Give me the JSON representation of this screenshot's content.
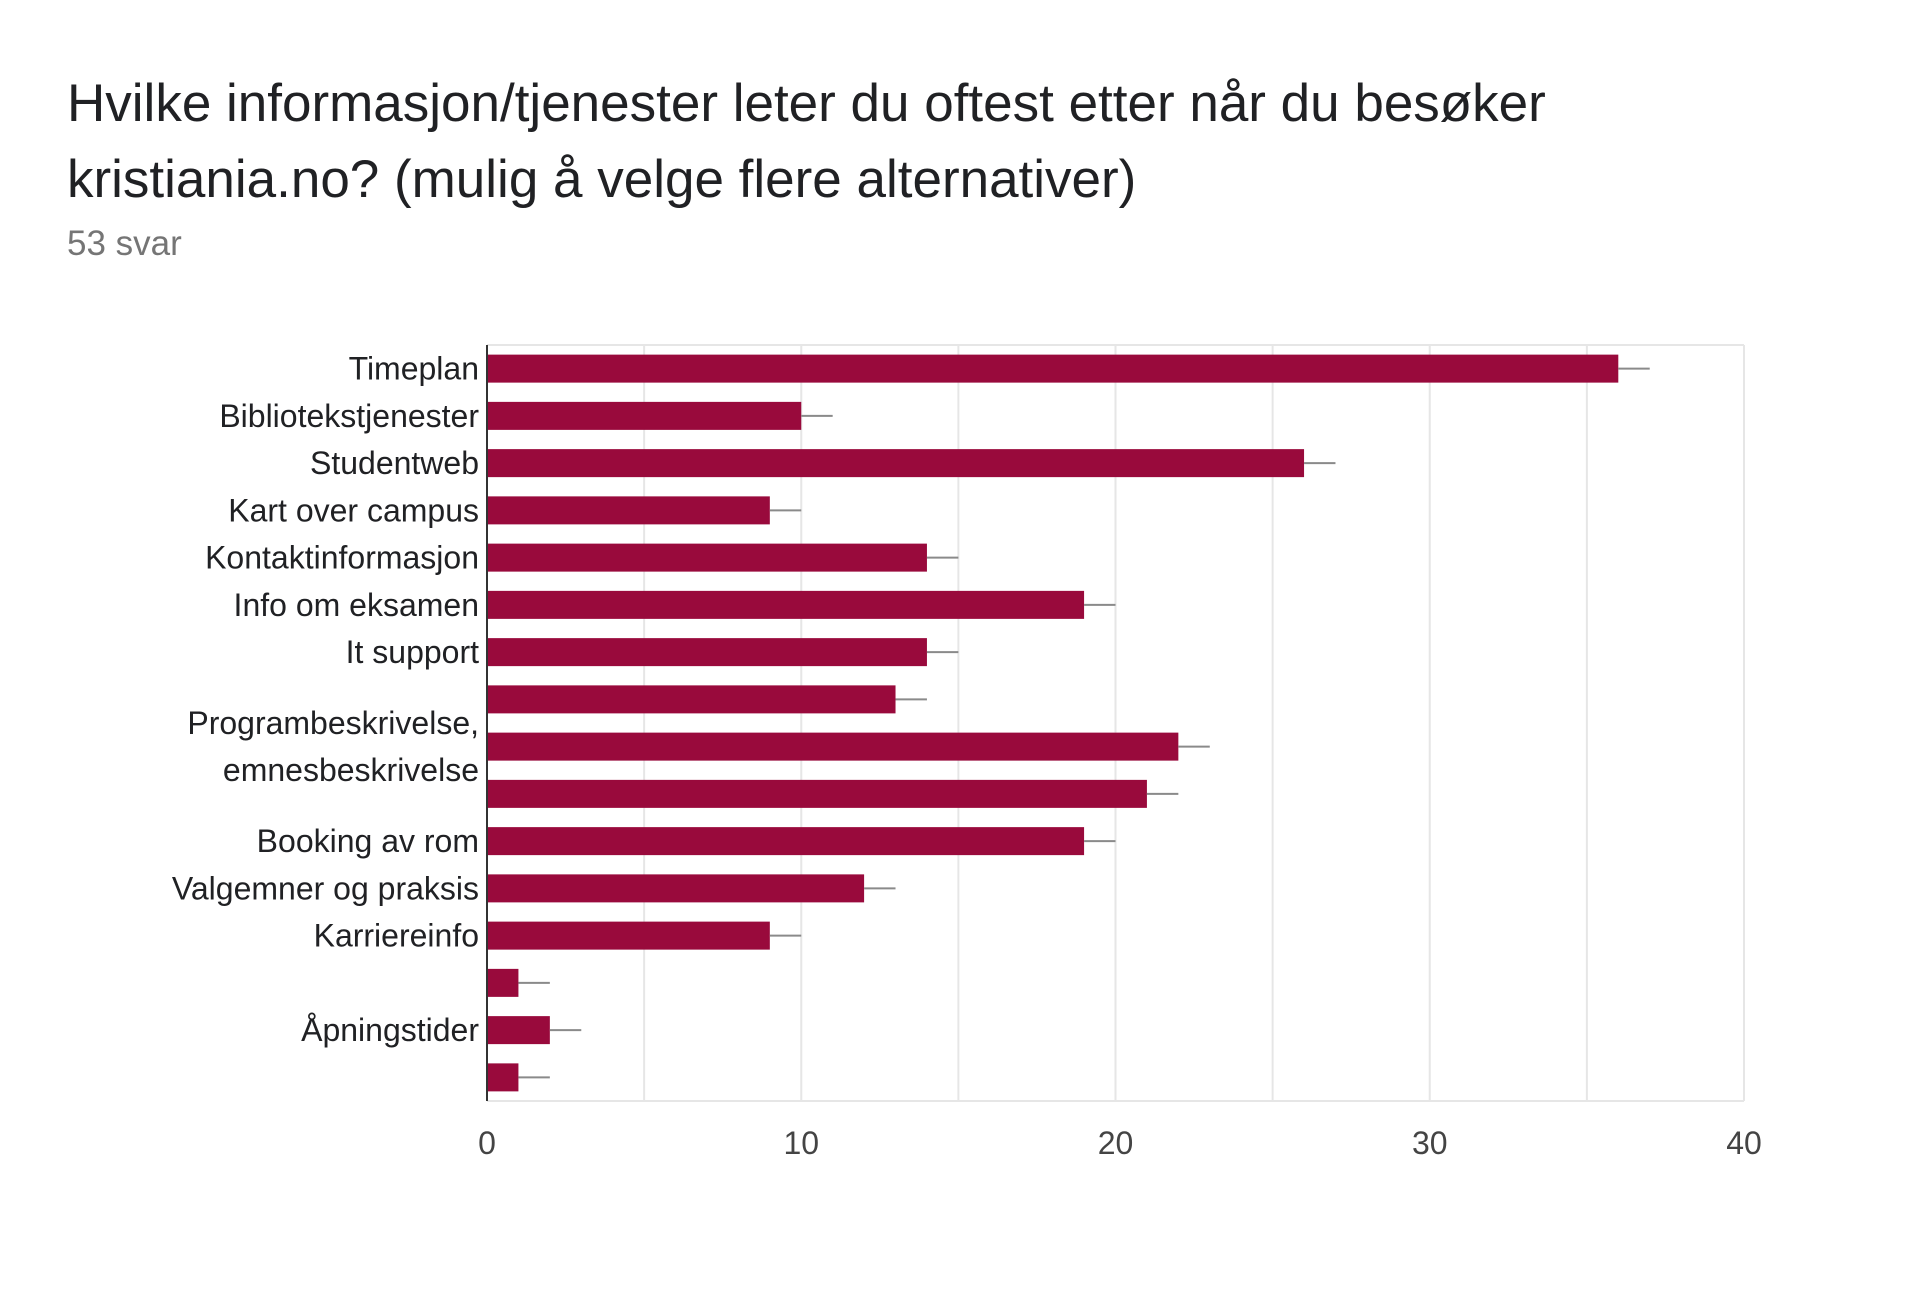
{
  "chart_data": {
    "type": "bar",
    "orientation": "horizontal",
    "title": "Hvilke informasjon/tjenester leter du oftest etter når du besøker kristiania.no? (mulig å velge flere alternativer)",
    "subtitle": "53 svar",
    "categories": [
      "Timeplan",
      "Bibliotekstjenester",
      "Studentweb",
      "Kart over campus",
      "Kontaktinformasjon",
      "Info om eksamen",
      "It support",
      "",
      "",
      "",
      "Booking av rom",
      "Valgemner og praksis",
      "Karriereinfo",
      "",
      "Åpningstider",
      ""
    ],
    "group_labels": [
      {
        "lines": [
          "Programbeskrivelse,",
          "emnesbeskrivelse"
        ],
        "row_from": 7,
        "row_to": 9
      }
    ],
    "values": [
      36,
      10,
      26,
      9,
      14,
      19,
      14,
      13,
      22,
      21,
      19,
      12,
      9,
      1,
      2,
      1
    ],
    "xlim": [
      0,
      40
    ],
    "xticks": [
      0,
      10,
      20,
      30,
      40
    ],
    "grid": true,
    "bar_color": "#990a3c",
    "error_bar_extent": 1
  }
}
